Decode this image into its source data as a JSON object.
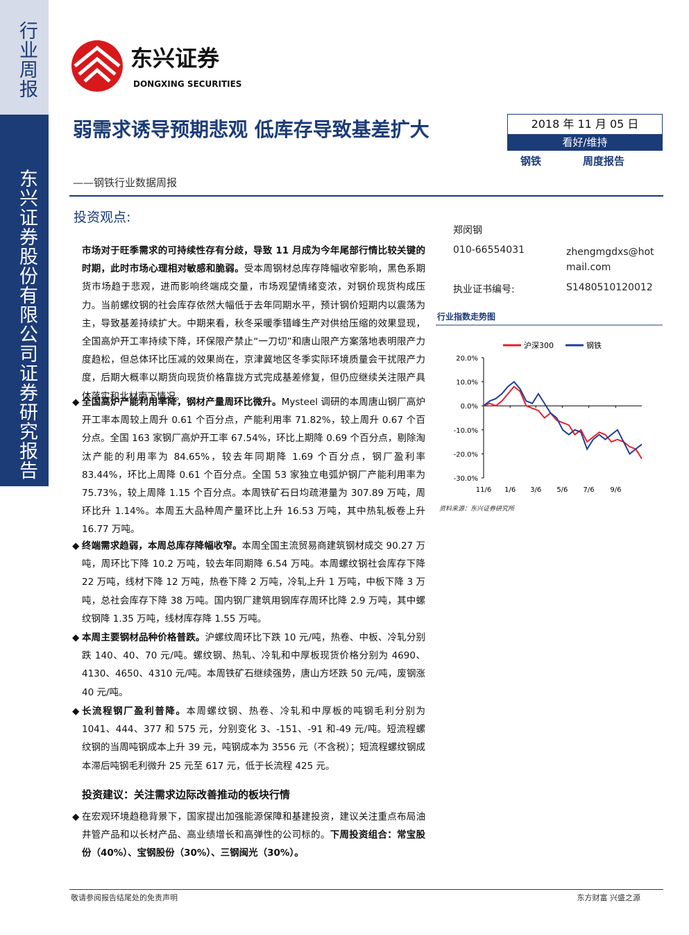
{
  "sidebar": {
    "type_label": "行业周报",
    "company": "东兴证券股份有限公司证券研究报告"
  },
  "header": {
    "logo_cn": "东兴证券",
    "logo_en": "DONGXING SECURITIES",
    "title": "弱需求诱导预期悲观 低库存导致基差扩大",
    "subtitle": "——钢铁行业数据周报",
    "date": "2018 年 11 月 05 日",
    "rating": "看好/维持",
    "industry": "钢铁",
    "report_type": "周度报告"
  },
  "section_title": "投资观点:",
  "analyst": {
    "name": "郑闵钢",
    "phone": "010-66554031",
    "email": "zhengmgdxs@hotmail.com",
    "cert_label": "执业证书编号:",
    "cert_no": "S1480510120012"
  },
  "paragraphs": [
    {
      "bold": "市场对于旺季需求的可持续性存有分歧，导致 11 月成为今年尾部行情比较关键的时期，此时市场心理相对敏感和脆弱。",
      "text": "受本周钢材总库存降幅收窄影响，黑色系期货市场趋于悲观，进而影响终端成交量，市场观望情绪变浓，对钢价现货构成压力。当前螺纹钢的社会库存依然大幅低于去年同期水平，预计钢价短期内以震荡为主，导致基差持续扩大。中期来看，秋冬采暖季错峰生产对供给压缩的效果显现，全国高炉开工率持续下降，环保限产禁止“一刀切”和唐山限产方案落地表明限产力度趋松，但总体环比压减的效果尚在，京津冀地区冬季实际环境质量会干扰限产力度，后期大概率以期货向现货价格靠拢方式完成基差修复，但仍应继续关注限产具体落实和北材南下情况。"
    },
    {
      "bold": "全国高炉产能利用率降，钢材产量周环比微升。",
      "text": "Mysteel 调研的本周唐山钢厂高炉开工率本周较上周升 0.61 个百分点，产能利用率 71.82%，较上周升 0.67 个百分点。全国 163 家钢厂高炉开工率 67.54%，环比上期降 0.69 个百分点，剔除淘汰产能的利用率为 84.65%，较去年同期降 1.69 个百分点，钢厂盈利率 83.44%，环比上周降 0.61 个百分点。全国 53 家独立电弧炉钢厂产能利用率为 75.73%，较上周降 1.15 个百分点。本周铁矿石日均疏港量为 307.89 万吨，周环比升 1.14%。本周五大品种周产量环比上升 16.53 万吨，其中热轧板卷上升 16.77 万吨。"
    },
    {
      "bold": "终端需求趋弱，本周总库存降幅收窄。",
      "text": "本周全国主流贸易商建筑钢材成交 90.27 万吨，周环比下降 10.2 万吨，较去年同期降 6.54 万吨。本周螺纹钢社会库存下降 22 万吨，线材下降 12 万吨，热卷下降 2 万吨，冷轧上升 1 万吨，中板下降 3 万吨，总社会库存下降 38 万吨。国内钢厂建筑用钢库存周环比降 2.9 万吨，其中螺纹钢降 1.35 万吨，线材库存降 1.55 万吨。"
    },
    {
      "bold": "本周主要钢材品种价格普跌。",
      "text": "沪螺纹周环比下跌 10 元/吨，热卷、中板、冷轧分别跌 140、40、70 元/吨。螺纹钢、热轧、冷轧和中厚板现货价格分别为 4690、4130、4650、4310 元/吨。本周铁矿石继续强势，唐山方坯跌 50 元/吨，废钢涨 40 元/吨。"
    },
    {
      "bold": "长流程钢厂盈利普降。",
      "text": "本周螺纹钢、热卷、冷轧和中厚板的吨钢毛利分别为 1041、444、377 和 575 元，分别变化 3、-151、-91 和-49 元/吨。短流程螺纹钢的当周吨钢成本上升 39 元，吨钢成本为 3556 元（不含税）；短流程螺纹钢成本滞后吨钢毛利微升 25 元至 617 元，低于长流程 425 元。"
    }
  ],
  "advice_title": "投资建议：关注需求边际改善推动的板块行情",
  "advice": {
    "text": "在宏观环境趋稳背景下，国家提出加强能源保障和基建投资，建议关注重点布局油井管产品和以长材产品、高业绩增长和高弹性的公司标的。",
    "bold": "下周投资组合：常宝股份（40%）、宝钢股份（30%）、三钢闽光（30%）。"
  },
  "chart_data": {
    "type": "line",
    "title": "行业指数走势图",
    "x": [
      0,
      14,
      28,
      42,
      56,
      70,
      84,
      98,
      112,
      126,
      140,
      154,
      168,
      182,
      196,
      210,
      224,
      238,
      252,
      266,
      280,
      294,
      308,
      322,
      336,
      350,
      364
    ],
    "xlim": [
      0,
      364
    ],
    "xticks": [
      {
        "value": 0,
        "label": "11/6"
      },
      {
        "value": 61,
        "label": "1/6"
      },
      {
        "value": 120,
        "label": "3/6"
      },
      {
        "value": 181,
        "label": "5/6"
      },
      {
        "value": 242,
        "label": "7/6"
      },
      {
        "value": 304,
        "label": "9/6"
      }
    ],
    "ylim": [
      -30,
      20
    ],
    "yticks": [
      {
        "value": 20,
        "label": "20.0%"
      },
      {
        "value": 10,
        "label": "10.0%"
      },
      {
        "value": 0,
        "label": "0.0%"
      },
      {
        "value": -10,
        "label": "-10.0%"
      },
      {
        "value": -20,
        "label": "-20.0%"
      },
      {
        "value": -30,
        "label": "-30.0%"
      }
    ],
    "series": [
      {
        "name": "沪深300",
        "color": "#e8202a",
        "values": [
          0,
          1,
          0,
          2,
          5,
          8,
          6,
          0,
          -1,
          -2,
          -5,
          -3,
          -6,
          -7,
          -8,
          -12,
          -10,
          -15,
          -13,
          -11,
          -12,
          -15,
          -14,
          -15,
          -17,
          -18,
          -22
        ]
      },
      {
        "name": "钢铁",
        "color": "#1f3f99",
        "values": [
          0,
          2,
          3,
          5,
          8,
          10,
          7,
          2,
          1,
          5,
          1,
          -3,
          -5,
          -10,
          -12,
          -10,
          -11,
          -18,
          -14,
          -12,
          -14,
          -12,
          -10,
          -15,
          -20,
          -18,
          -16
        ]
      }
    ],
    "source": "资料来源：东兴证券研究所"
  },
  "footer": {
    "left": "敬请参阅报告结尾处的免责声明",
    "right": "东方财富 兴盛之源"
  }
}
